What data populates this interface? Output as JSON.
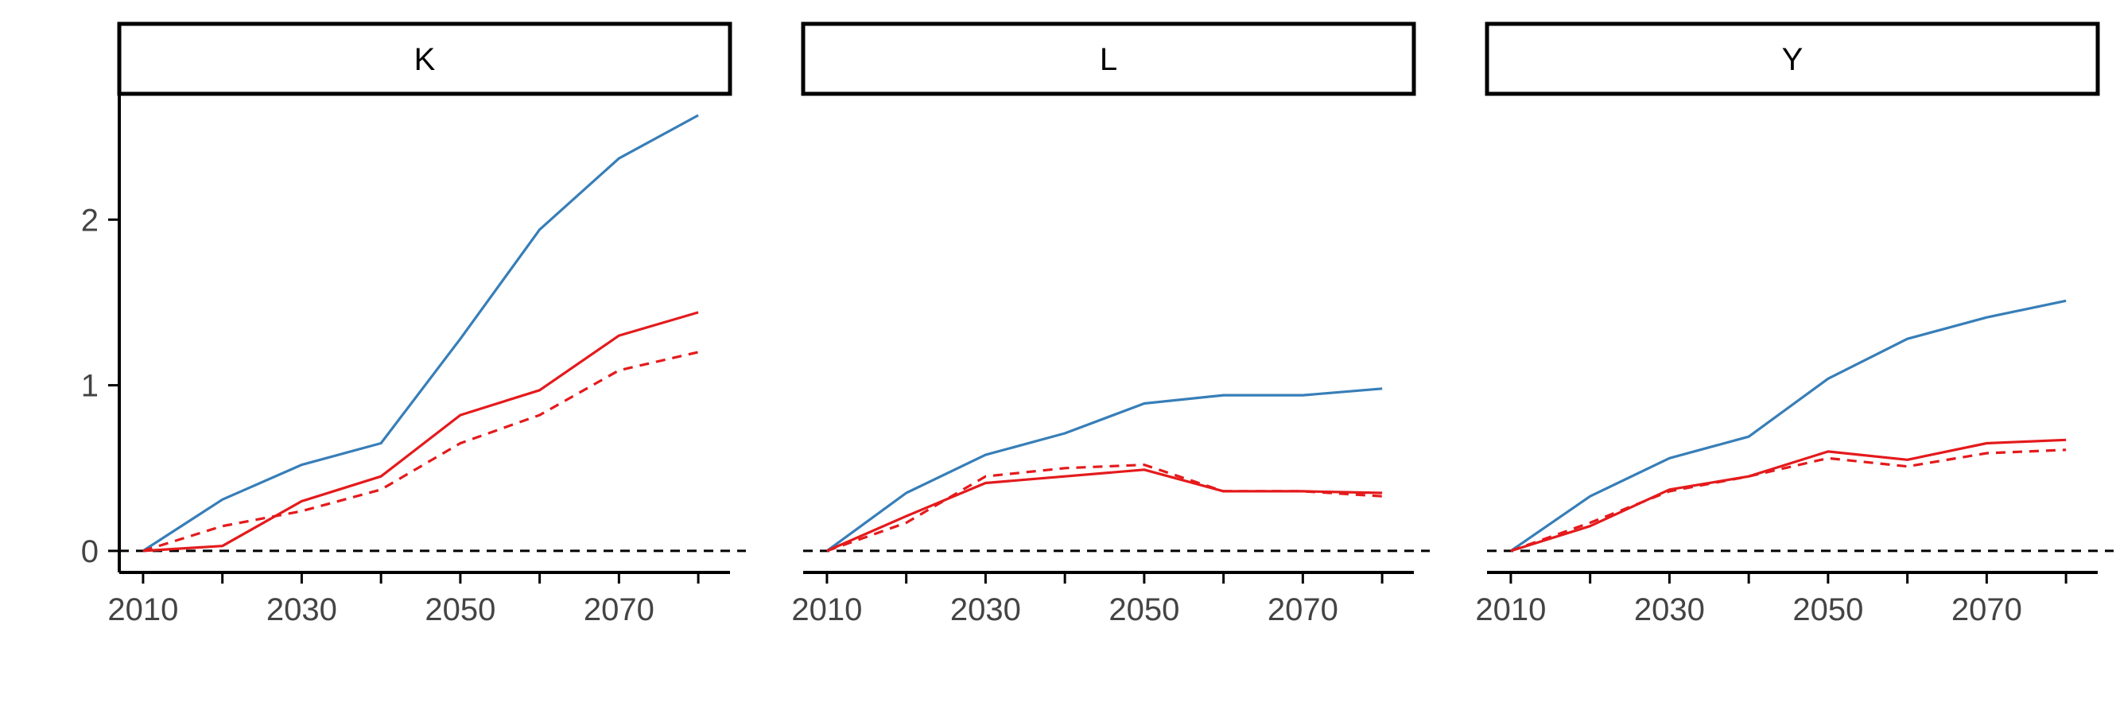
{
  "chart_data": [
    {
      "type": "line",
      "facet": "K",
      "x": [
        2010,
        2020,
        2030,
        2040,
        2050,
        2060,
        2070,
        2080
      ],
      "series": [
        {
          "color": "#377eb8",
          "linetype": "solid",
          "values": [
            0.0,
            0.31,
            0.52,
            0.65,
            1.28,
            1.94,
            2.37,
            2.63
          ]
        },
        {
          "color": "#e41a1c",
          "linetype": "solid",
          "values": [
            0.0,
            0.03,
            0.3,
            0.45,
            0.82,
            0.97,
            1.3,
            1.44
          ]
        },
        {
          "color": "#e41a1c",
          "linetype": "dashed",
          "values": [
            0.0,
            0.15,
            0.24,
            0.37,
            0.65,
            0.82,
            1.09,
            1.2
          ]
        }
      ],
      "xticks": [
        "2010",
        "2030",
        "2050",
        "2070"
      ],
      "yticks": [
        "0",
        "1",
        "2"
      ],
      "ylim": [
        -0.13,
        2.75
      ],
      "xlim": [
        2007,
        2084
      ],
      "reference_line": {
        "y": 0,
        "linetype": "dashed",
        "color": "#000000"
      }
    },
    {
      "type": "line",
      "facet": "L",
      "x": [
        2010,
        2020,
        2030,
        2040,
        2050,
        2060,
        2070,
        2080
      ],
      "series": [
        {
          "color": "#377eb8",
          "linetype": "solid",
          "values": [
            0.0,
            0.35,
            0.58,
            0.71,
            0.89,
            0.94,
            0.94,
            0.98
          ]
        },
        {
          "color": "#e41a1c",
          "linetype": "solid",
          "values": [
            0.0,
            0.21,
            0.41,
            0.45,
            0.49,
            0.36,
            0.36,
            0.35
          ]
        },
        {
          "color": "#e41a1c",
          "linetype": "dashed",
          "values": [
            0.0,
            0.17,
            0.45,
            0.5,
            0.52,
            0.36,
            0.36,
            0.33
          ]
        }
      ],
      "xticks": [
        "2010",
        "2030",
        "2050",
        "2070"
      ],
      "ylim": [
        -0.13,
        2.75
      ],
      "xlim": [
        2007,
        2084
      ],
      "reference_line": {
        "y": 0,
        "linetype": "dashed",
        "color": "#000000"
      }
    },
    {
      "type": "line",
      "facet": "Y",
      "x": [
        2010,
        2020,
        2030,
        2040,
        2050,
        2060,
        2070,
        2080
      ],
      "series": [
        {
          "color": "#377eb8",
          "linetype": "solid",
          "values": [
            0.0,
            0.33,
            0.56,
            0.69,
            1.04,
            1.28,
            1.41,
            1.51
          ]
        },
        {
          "color": "#e41a1c",
          "linetype": "solid",
          "values": [
            0.0,
            0.15,
            0.37,
            0.45,
            0.6,
            0.55,
            0.65,
            0.67
          ]
        },
        {
          "color": "#e41a1c",
          "linetype": "dashed",
          "values": [
            0.0,
            0.17,
            0.36,
            0.45,
            0.56,
            0.51,
            0.59,
            0.61
          ]
        }
      ],
      "xticks": [
        "2010",
        "2030",
        "2050",
        "2070"
      ],
      "ylim": [
        -0.13,
        2.75
      ],
      "xlim": [
        2007,
        2084
      ],
      "reference_line": {
        "y": 0,
        "linetype": "dashed",
        "color": "#000000"
      }
    }
  ]
}
